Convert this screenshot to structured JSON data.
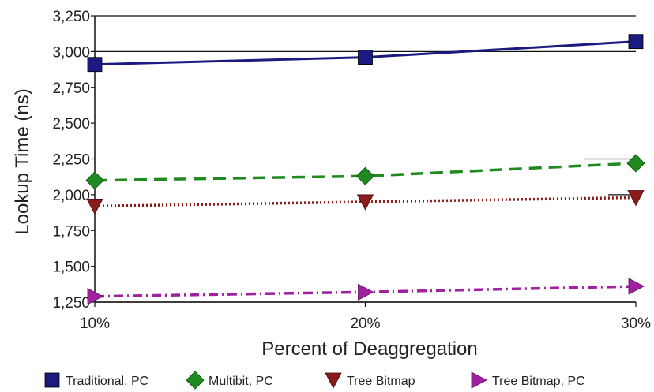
{
  "chart_data": {
    "type": "line",
    "categories": [
      "10%",
      "20%",
      "30%"
    ],
    "xlabel": "Percent of Deaggregation",
    "ylabel": "Lookup Time (ns)",
    "ylim": [
      1250,
      3250
    ],
    "yticks": [
      1250,
      1500,
      1750,
      2000,
      2250,
      2500,
      2750,
      3000,
      3250
    ],
    "ytick_labels": [
      "1,250",
      "1,500",
      "1,750",
      "2,000",
      "2,250",
      "2,500",
      "2,750",
      "3,000",
      "3,250"
    ],
    "grid": "horizontal-partial",
    "legend_position": "bottom",
    "series": [
      {
        "name": "Traditional, PC",
        "values": [
          2910,
          2960,
          3070
        ],
        "color": "#1a1a80",
        "marker": "square",
        "line": "solid"
      },
      {
        "name": "Multibit, PC",
        "values": [
          2100,
          2130,
          2220
        ],
        "color": "#1f8a1f",
        "marker": "diamond",
        "line": "dashed"
      },
      {
        "name": "Tree Bitmap",
        "values": [
          1920,
          1950,
          1980
        ],
        "color": "#8b1a1a",
        "marker": "triangle-down",
        "line": "dotted"
      },
      {
        "name": "Tree Bitmap, PC",
        "values": [
          1290,
          1320,
          1360
        ],
        "color": "#a020a0",
        "marker": "triangle-right",
        "line": "dashdot"
      }
    ]
  }
}
